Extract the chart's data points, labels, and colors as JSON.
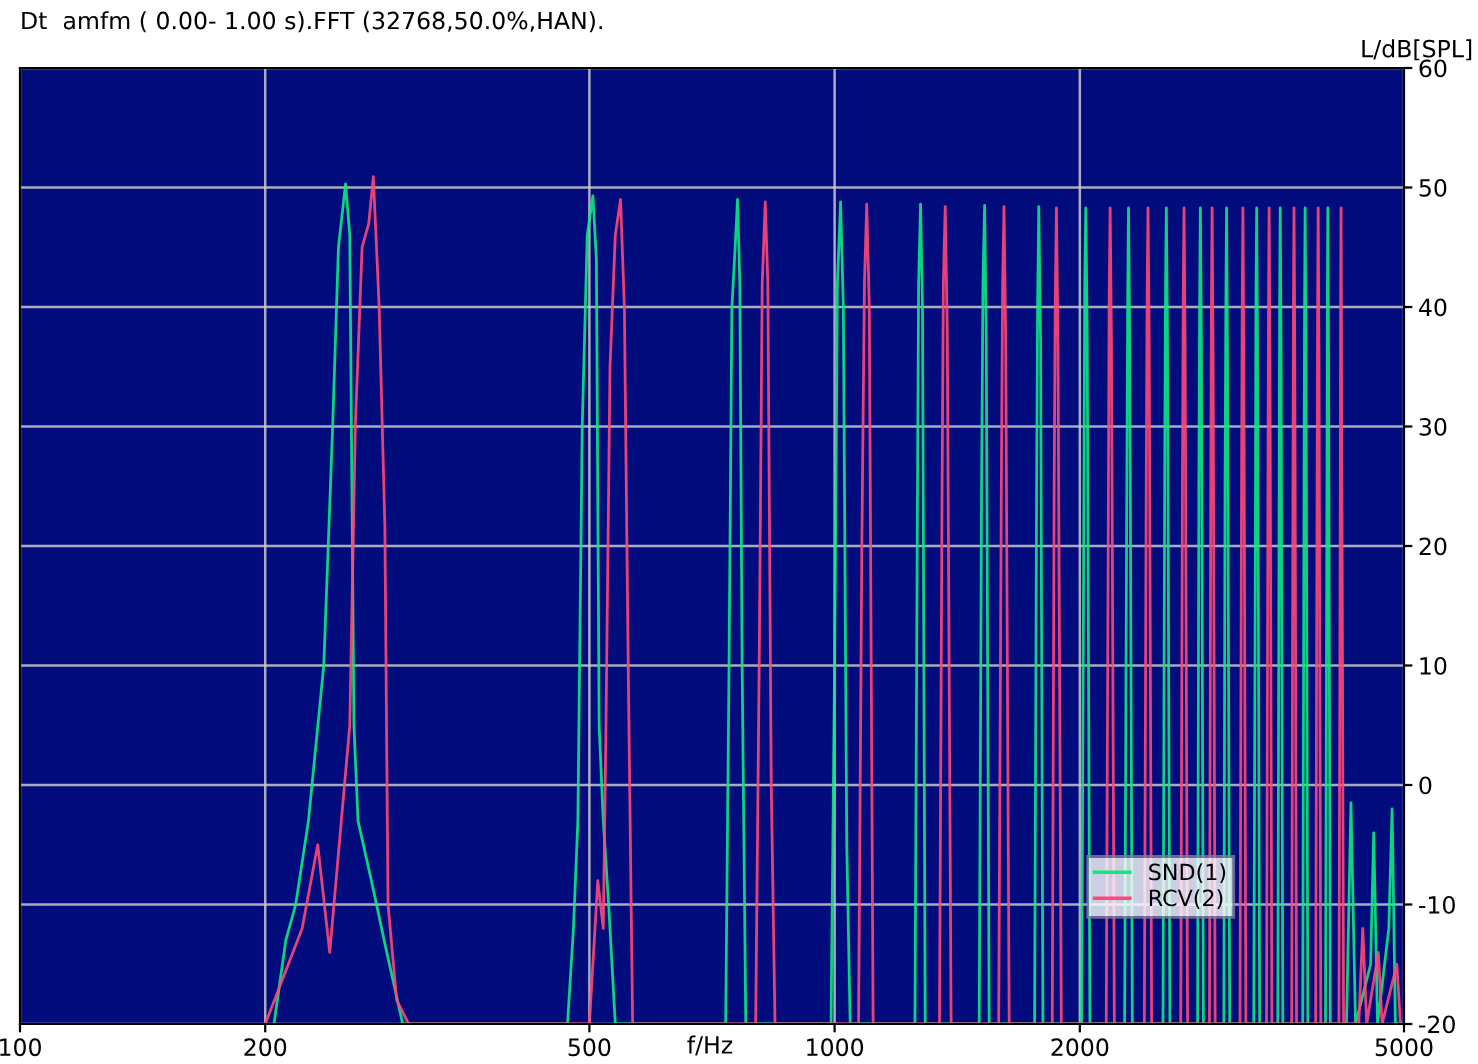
{
  "chart_data": {
    "type": "line",
    "title": "Dt  amfm ( 0.00- 1.00 s).FFT (32768,50.0%,HAN).",
    "xlabel": "f/Hz",
    "ylabel": "L/dB[SPL]",
    "log": "x",
    "xlim": [
      100,
      5000
    ],
    "xticks": [
      100,
      200,
      500,
      1000,
      2000,
      5000
    ],
    "ylim": [
      -20,
      60
    ],
    "yticks": [
      -20,
      -10,
      0,
      10,
      20,
      30,
      40,
      50,
      60
    ],
    "grid": true,
    "legend": "bottom right",
    "line_style": "solid",
    "series": [
      {
        "name": "SND(1)",
        "color": "#10e880",
        "x": [
          205,
          212,
          218,
          226,
          236,
          242,
          246,
          251,
          254,
          257,
          260,
          270,
          282,
          295,
          470,
          478,
          484,
          490,
          497,
          505,
          510,
          514,
          520,
          528,
          538,
          735,
          742,
          748,
          755,
          760,
          765,
          770,
          778,
          990,
          1000,
          1008,
          1017,
          1025,
          1035,
          1045,
          1255,
          1263,
          1268,
          1275,
          1282,
          1292,
          1505,
          1515,
          1521,
          1528,
          1535,
          1548,
          1760,
          1770,
          1775,
          1781,
          1790,
          1802,
          2010,
          2022,
          2028,
          2034,
          2042,
          2058,
          2270,
          2283,
          2290,
          2295,
          2303,
          2320,
          2530,
          2542,
          2548,
          2554,
          2562,
          2580,
          2790,
          2800,
          2806,
          2812,
          2820,
          2836,
          3005,
          3015,
          3022,
          3028,
          3036,
          3055,
          3270,
          3285,
          3290,
          3297,
          3305,
          3325,
          3500,
          3512,
          3518,
          3524,
          3532,
          3550,
          3755,
          3768,
          3775,
          3781,
          3790,
          3810,
          4005,
          4020,
          4026,
          4032,
          4040,
          4060,
          4250,
          4304,
          4360,
          4550,
          4590,
          4640,
          4790,
          4835,
          4880,
          5000
        ],
        "values": [
          -20,
          -13,
          -10,
          -3,
          10,
          30,
          45,
          50.3,
          46,
          5,
          -3,
          -8,
          -14,
          -20,
          -20,
          -12,
          -3,
          30,
          46,
          49.3,
          44,
          5,
          -3,
          -10,
          -20,
          -20,
          10,
          40,
          45,
          49,
          42,
          10,
          -20,
          -20,
          10,
          42,
          48.8,
          40,
          -5,
          -20,
          -20,
          20,
          42,
          48.6,
          40,
          -20,
          -20,
          25,
          42,
          48.5,
          38,
          -20,
          -20,
          25,
          40,
          48.4,
          37,
          -20,
          -20,
          20,
          42,
          48.3,
          38,
          -20,
          -20,
          22,
          41,
          48.3,
          37,
          -20,
          -20,
          25,
          41,
          48.3,
          38,
          -20,
          -20,
          25,
          40,
          48.3,
          37,
          -20,
          -20,
          25,
          40,
          48.3,
          36,
          -20,
          -20,
          20,
          40,
          48.3,
          37,
          -20,
          -20,
          20,
          40,
          48.3,
          37,
          -20,
          -20,
          20,
          40,
          48.3,
          37,
          -20,
          -20,
          20,
          40,
          48.3,
          35,
          -20,
          -20,
          -1.5,
          -20,
          -15,
          -4,
          -20,
          -12,
          -2,
          -20,
          -20
        ]
      },
      {
        "name": "RCV(2)",
        "color": "#ff4878",
        "x": [
          200,
          222,
          232,
          240,
          248,
          254,
          258,
          263,
          268,
          271.5,
          276,
          280.5,
          283,
          290,
          300,
          500,
          512,
          520,
          524,
          530,
          538,
          546,
          552,
          558,
          565,
          800,
          808,
          815,
          822,
          828,
          836,
          845,
          1070,
          1080,
          1088,
          1095,
          1103,
          1115,
          1345,
          1355,
          1360,
          1367,
          1375,
          1390,
          1590,
          1602,
          1608,
          1614,
          1622,
          1638,
          1850,
          1860,
          1866,
          1872,
          1880,
          1898,
          2155,
          2167,
          2173,
          2179,
          2187,
          2205,
          2400,
          2413,
          2419,
          2425,
          2433,
          2450,
          2660,
          2673,
          2679,
          2685,
          2693,
          2712,
          2885,
          2896,
          2901,
          2907,
          2915,
          2932,
          3145,
          3158,
          3165,
          3171,
          3179,
          3198,
          3390,
          3403,
          3409,
          3415,
          3423,
          3442,
          3640,
          3652,
          3658,
          3664,
          3672,
          3690,
          3895,
          3910,
          3917,
          3923,
          3932,
          3952,
          4160,
          4173,
          4180,
          4185,
          4193,
          4215,
          4400,
          4450,
          4500,
          4650,
          4700,
          4900,
          4950
        ],
        "values": [
          -20,
          -12,
          -5,
          -14,
          -3,
          5,
          30,
          45,
          47,
          50.9,
          40,
          21.6,
          -10,
          -18,
          -20,
          -20,
          -8,
          -12,
          5,
          35,
          46,
          49,
          40,
          10,
          -20,
          -20,
          10,
          42,
          48.8,
          42,
          0,
          -20,
          -20,
          20,
          42,
          48.6,
          40,
          -20,
          -20,
          25,
          42,
          48.4,
          38,
          -20,
          -20,
          25,
          42,
          48.4,
          37,
          -20,
          -20,
          25,
          41,
          48.3,
          37,
          -20,
          -20,
          20,
          41,
          48.3,
          37,
          -20,
          -20,
          25,
          41,
          48.3,
          37,
          -20,
          -20,
          25,
          41,
          48.3,
          37,
          -20,
          -20,
          25,
          40,
          48.3,
          36,
          -20,
          -20,
          22,
          40,
          48.3,
          36,
          -20,
          -20,
          22,
          40,
          48.3,
          36,
          -20,
          -20,
          22,
          40,
          48.3,
          36,
          -20,
          -20,
          22,
          40,
          48.3,
          36,
          -20,
          -20,
          15,
          40,
          48.3,
          30,
          -20,
          -20,
          -12,
          -20,
          -14,
          -20,
          -15,
          -20
        ]
      }
    ]
  }
}
